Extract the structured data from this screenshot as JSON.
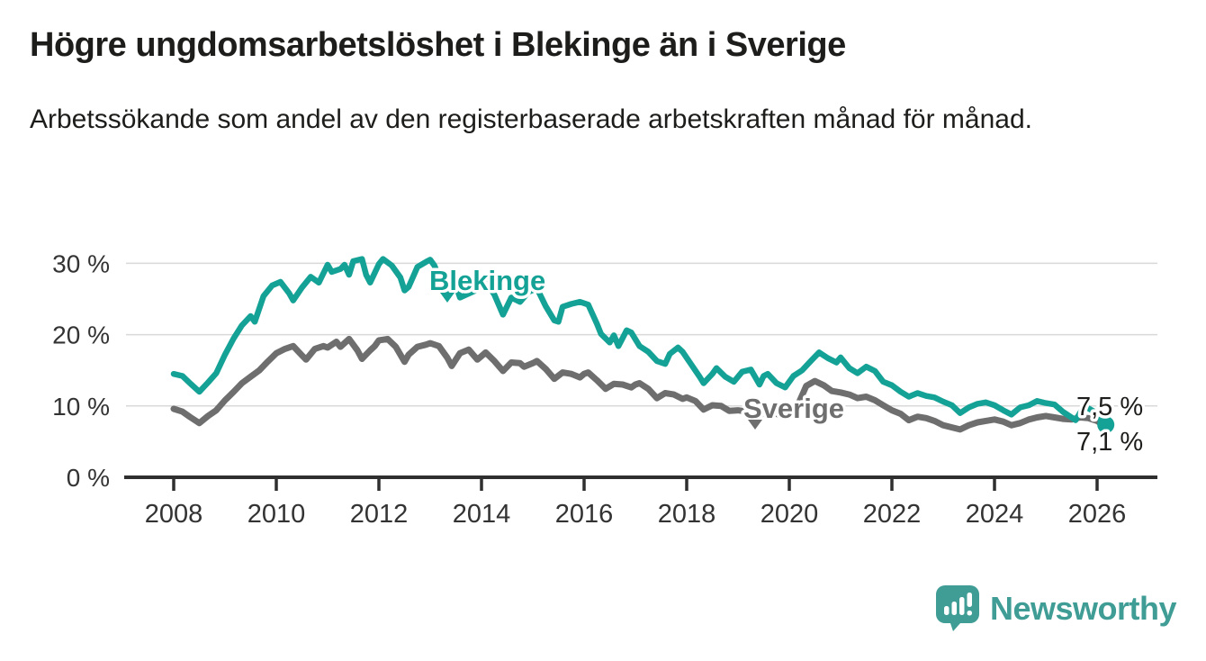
{
  "header": {
    "title": "Högre ungdomsarbetslöshet i Blekinge än i Sverige",
    "subtitle": "Arbetssökande som andel av den registerbaserade arbetskraften månad för månad."
  },
  "footer": {
    "brand": "Newsworthy"
  },
  "colors": {
    "blekinge": "#15a296",
    "sverige": "#6e6e6e",
    "axis": "#2f2f2f",
    "grid": "#d9d9d9",
    "tick_text": "#333333",
    "annotation_text": "#1d1d1b",
    "brand": "#3f9d95"
  },
  "chart_data": {
    "type": "line",
    "title": "Högre ungdomsarbetslöshet i Blekinge än i Sverige",
    "subtitle": "Arbetssökande som andel av den registerbaserade arbetskraften månad för månad.",
    "x_axis": {
      "ticks": [
        2008,
        2010,
        2012,
        2014,
        2016,
        2018,
        2020,
        2022,
        2024,
        2026
      ],
      "tick_labels": [
        "2008",
        "2010",
        "2012",
        "2014",
        "2016",
        "2018",
        "2020",
        "2022",
        "2024",
        "2026"
      ],
      "range": [
        2007.1,
        2027.2
      ],
      "unit": "year (monthly data)"
    },
    "y_axis": {
      "ticks": [
        0,
        10,
        20,
        30
      ],
      "tick_labels": [
        "0 %",
        "10 %",
        "20 %",
        "30 %"
      ],
      "range": [
        0,
        32
      ],
      "grid": true,
      "unit": "percent of registered labour force"
    },
    "legend_position": "inline-labels",
    "annotations": {
      "blekinge_label": "Blekinge",
      "sverige_label": "Sverige",
      "end_label_blekinge": "7,5 %",
      "end_label_sverige": "7,1 %"
    },
    "series": [
      {
        "name": "Sverige",
        "color": "#6e6e6e",
        "end_value": 7.1,
        "points": [
          [
            2008.0,
            9.6
          ],
          [
            2008.17,
            9.2
          ],
          [
            2008.33,
            8.4
          ],
          [
            2008.5,
            7.6
          ],
          [
            2008.67,
            8.6
          ],
          [
            2008.83,
            9.4
          ],
          [
            2009.0,
            10.8
          ],
          [
            2009.17,
            12.0
          ],
          [
            2009.33,
            13.2
          ],
          [
            2009.5,
            14.1
          ],
          [
            2009.67,
            15.0
          ],
          [
            2009.83,
            16.2
          ],
          [
            2010.0,
            17.4
          ],
          [
            2010.17,
            18.0
          ],
          [
            2010.33,
            18.4
          ],
          [
            2010.5,
            17.1
          ],
          [
            2010.58,
            16.5
          ],
          [
            2010.75,
            18.0
          ],
          [
            2010.92,
            18.4
          ],
          [
            2011.0,
            18.2
          ],
          [
            2011.17,
            19.0
          ],
          [
            2011.25,
            18.3
          ],
          [
            2011.42,
            19.4
          ],
          [
            2011.58,
            17.8
          ],
          [
            2011.67,
            16.6
          ],
          [
            2011.83,
            17.8
          ],
          [
            2011.92,
            18.4
          ],
          [
            2012.0,
            19.2
          ],
          [
            2012.17,
            19.4
          ],
          [
            2012.33,
            18.3
          ],
          [
            2012.5,
            16.2
          ],
          [
            2012.58,
            17.2
          ],
          [
            2012.75,
            18.3
          ],
          [
            2012.92,
            18.6
          ],
          [
            2013.0,
            18.8
          ],
          [
            2013.17,
            18.4
          ],
          [
            2013.33,
            16.8
          ],
          [
            2013.42,
            15.6
          ],
          [
            2013.58,
            17.4
          ],
          [
            2013.75,
            17.9
          ],
          [
            2013.92,
            16.5
          ],
          [
            2014.0,
            17.0
          ],
          [
            2014.08,
            17.5
          ],
          [
            2014.25,
            16.3
          ],
          [
            2014.42,
            14.9
          ],
          [
            2014.58,
            16.1
          ],
          [
            2014.75,
            16.0
          ],
          [
            2014.83,
            15.5
          ],
          [
            2015.0,
            16.0
          ],
          [
            2015.08,
            16.3
          ],
          [
            2015.25,
            15.2
          ],
          [
            2015.42,
            13.8
          ],
          [
            2015.58,
            14.7
          ],
          [
            2015.75,
            14.5
          ],
          [
            2015.92,
            14.0
          ],
          [
            2016.0,
            14.5
          ],
          [
            2016.08,
            14.7
          ],
          [
            2016.25,
            13.6
          ],
          [
            2016.42,
            12.4
          ],
          [
            2016.58,
            13.1
          ],
          [
            2016.75,
            13.0
          ],
          [
            2016.92,
            12.6
          ],
          [
            2017.0,
            13.0
          ],
          [
            2017.08,
            13.2
          ],
          [
            2017.25,
            12.4
          ],
          [
            2017.42,
            11.1
          ],
          [
            2017.58,
            11.8
          ],
          [
            2017.75,
            11.6
          ],
          [
            2017.92,
            11.0
          ],
          [
            2018.0,
            11.2
          ],
          [
            2018.17,
            10.7
          ],
          [
            2018.33,
            9.5
          ],
          [
            2018.5,
            10.1
          ],
          [
            2018.67,
            10.0
          ],
          [
            2018.83,
            9.3
          ],
          [
            2019.0,
            9.4
          ],
          [
            2019.17,
            9.2
          ],
          [
            2019.33,
            8.4
          ],
          [
            2019.5,
            9.0
          ],
          [
            2019.67,
            9.1
          ],
          [
            2019.83,
            8.7
          ],
          [
            2020.0,
            9.2
          ],
          [
            2020.17,
            10.2
          ],
          [
            2020.33,
            12.8
          ],
          [
            2020.5,
            13.5
          ],
          [
            2020.67,
            12.9
          ],
          [
            2020.83,
            12.1
          ],
          [
            2021.0,
            11.9
          ],
          [
            2021.17,
            11.6
          ],
          [
            2021.33,
            11.1
          ],
          [
            2021.5,
            11.3
          ],
          [
            2021.67,
            10.8
          ],
          [
            2021.83,
            10.1
          ],
          [
            2022.0,
            9.4
          ],
          [
            2022.17,
            8.9
          ],
          [
            2022.33,
            8.0
          ],
          [
            2022.5,
            8.5
          ],
          [
            2022.67,
            8.3
          ],
          [
            2022.83,
            7.9
          ],
          [
            2023.0,
            7.3
          ],
          [
            2023.17,
            7.0
          ],
          [
            2023.33,
            6.7
          ],
          [
            2023.5,
            7.3
          ],
          [
            2023.67,
            7.7
          ],
          [
            2023.83,
            7.9
          ],
          [
            2024.0,
            8.1
          ],
          [
            2024.17,
            7.8
          ],
          [
            2024.33,
            7.3
          ],
          [
            2024.5,
            7.6
          ],
          [
            2024.67,
            8.1
          ],
          [
            2024.83,
            8.4
          ],
          [
            2025.0,
            8.6
          ],
          [
            2025.17,
            8.4
          ],
          [
            2025.33,
            8.2
          ],
          [
            2025.5,
            8.1
          ],
          [
            2025.67,
            8.4
          ],
          [
            2025.83,
            8.3
          ],
          [
            2026.0,
            7.9
          ],
          [
            2026.17,
            7.1
          ]
        ]
      },
      {
        "name": "Blekinge",
        "color": "#15a296",
        "end_value": 7.5,
        "points": [
          [
            2008.0,
            14.5
          ],
          [
            2008.17,
            14.2
          ],
          [
            2008.33,
            13.1
          ],
          [
            2008.5,
            12.0
          ],
          [
            2008.67,
            13.3
          ],
          [
            2008.83,
            14.6
          ],
          [
            2009.0,
            17.2
          ],
          [
            2009.17,
            19.5
          ],
          [
            2009.33,
            21.3
          ],
          [
            2009.5,
            22.6
          ],
          [
            2009.58,
            21.8
          ],
          [
            2009.75,
            25.4
          ],
          [
            2009.92,
            26.9
          ],
          [
            2010.08,
            27.4
          ],
          [
            2010.25,
            25.8
          ],
          [
            2010.33,
            24.8
          ],
          [
            2010.5,
            26.6
          ],
          [
            2010.67,
            28.1
          ],
          [
            2010.83,
            27.3
          ],
          [
            2011.0,
            29.8
          ],
          [
            2011.08,
            28.8
          ],
          [
            2011.25,
            29.2
          ],
          [
            2011.33,
            29.8
          ],
          [
            2011.42,
            28.4
          ],
          [
            2011.5,
            30.3
          ],
          [
            2011.67,
            30.6
          ],
          [
            2011.75,
            28.4
          ],
          [
            2011.83,
            27.3
          ],
          [
            2012.0,
            29.9
          ],
          [
            2012.08,
            30.6
          ],
          [
            2012.25,
            29.7
          ],
          [
            2012.42,
            28.0
          ],
          [
            2012.5,
            26.2
          ],
          [
            2012.58,
            26.7
          ],
          [
            2012.75,
            29.5
          ],
          [
            2012.92,
            30.2
          ],
          [
            2013.0,
            30.5
          ],
          [
            2013.08,
            29.7
          ],
          [
            2013.33,
            25.4
          ],
          [
            2013.5,
            26.9
          ],
          [
            2013.58,
            25.2
          ],
          [
            2013.92,
            26.3
          ],
          [
            2014.08,
            27.4
          ],
          [
            2014.25,
            25.6
          ],
          [
            2014.42,
            22.8
          ],
          [
            2014.58,
            25.2
          ],
          [
            2014.75,
            24.6
          ],
          [
            2014.92,
            26.0
          ],
          [
            2015.08,
            26.5
          ],
          [
            2015.25,
            24.0
          ],
          [
            2015.42,
            22.0
          ],
          [
            2015.5,
            21.8
          ],
          [
            2015.58,
            23.9
          ],
          [
            2015.75,
            24.3
          ],
          [
            2015.92,
            24.6
          ],
          [
            2016.08,
            24.2
          ],
          [
            2016.25,
            21.5
          ],
          [
            2016.33,
            20.1
          ],
          [
            2016.5,
            18.9
          ],
          [
            2016.58,
            19.9
          ],
          [
            2016.67,
            18.4
          ],
          [
            2016.83,
            20.6
          ],
          [
            2016.92,
            20.3
          ],
          [
            2017.08,
            18.4
          ],
          [
            2017.25,
            17.6
          ],
          [
            2017.42,
            16.3
          ],
          [
            2017.58,
            15.9
          ],
          [
            2017.67,
            17.3
          ],
          [
            2017.83,
            18.2
          ],
          [
            2017.92,
            17.6
          ],
          [
            2018.08,
            15.9
          ],
          [
            2018.25,
            14.1
          ],
          [
            2018.33,
            13.2
          ],
          [
            2018.5,
            14.5
          ],
          [
            2018.58,
            15.3
          ],
          [
            2018.75,
            14.1
          ],
          [
            2018.92,
            13.4
          ],
          [
            2019.08,
            14.8
          ],
          [
            2019.25,
            15.1
          ],
          [
            2019.42,
            13.0
          ],
          [
            2019.5,
            14.2
          ],
          [
            2019.58,
            14.5
          ],
          [
            2019.75,
            13.2
          ],
          [
            2019.92,
            12.6
          ],
          [
            2020.08,
            14.2
          ],
          [
            2020.25,
            15.0
          ],
          [
            2020.42,
            16.3
          ],
          [
            2020.58,
            17.5
          ],
          [
            2020.75,
            16.7
          ],
          [
            2020.92,
            16.1
          ],
          [
            2021.0,
            16.8
          ],
          [
            2021.17,
            15.3
          ],
          [
            2021.33,
            14.6
          ],
          [
            2021.5,
            15.5
          ],
          [
            2021.67,
            14.9
          ],
          [
            2021.83,
            13.4
          ],
          [
            2022.0,
            12.9
          ],
          [
            2022.17,
            12.0
          ],
          [
            2022.33,
            11.3
          ],
          [
            2022.5,
            11.8
          ],
          [
            2022.67,
            11.4
          ],
          [
            2022.83,
            11.2
          ],
          [
            2023.0,
            10.6
          ],
          [
            2023.17,
            10.1
          ],
          [
            2023.33,
            9.0
          ],
          [
            2023.5,
            9.8
          ],
          [
            2023.67,
            10.3
          ],
          [
            2023.83,
            10.5
          ],
          [
            2024.0,
            10.1
          ],
          [
            2024.17,
            9.4
          ],
          [
            2024.33,
            8.8
          ],
          [
            2024.5,
            9.8
          ],
          [
            2024.67,
            10.1
          ],
          [
            2024.83,
            10.7
          ],
          [
            2025.0,
            10.4
          ],
          [
            2025.17,
            10.2
          ],
          [
            2025.33,
            9.2
          ],
          [
            2025.5,
            8.4
          ],
          [
            2025.58,
            8.0
          ],
          [
            2025.75,
            10.0
          ],
          [
            2025.92,
            9.3
          ],
          [
            2026.0,
            8.5
          ],
          [
            2026.17,
            7.5
          ]
        ]
      }
    ]
  }
}
